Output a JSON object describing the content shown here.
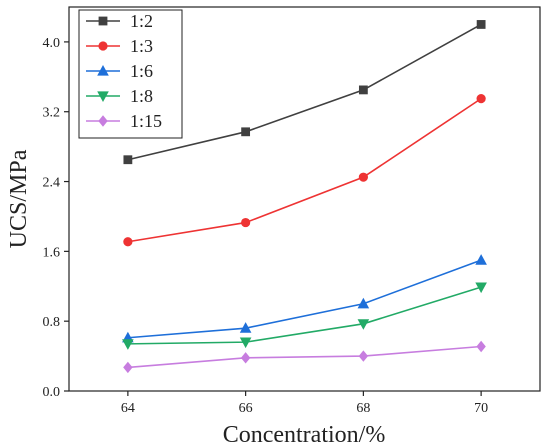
{
  "chart_data": {
    "type": "line",
    "xlabel": "Concentration/%",
    "ylabel": "UCS/MPa",
    "x": [
      64,
      66,
      68,
      70
    ],
    "xlim": [
      63,
      71
    ],
    "ylim": [
      0,
      4.4
    ],
    "xticks": [
      64,
      66,
      68,
      70
    ],
    "yticks": [
      0.0,
      0.8,
      1.6,
      2.4,
      3.2,
      4.0
    ],
    "xtick_labels": [
      "64",
      "66",
      "68",
      "70"
    ],
    "ytick_labels": [
      "0.0",
      "0.8",
      "1.6",
      "2.4",
      "3.2",
      "4.0"
    ],
    "grid": false,
    "legend_position": "top-left",
    "series": [
      {
        "name": "1:2",
        "values": [
          2.65,
          2.97,
          3.45,
          4.2
        ],
        "color": "#404040",
        "marker": "square"
      },
      {
        "name": "1:3",
        "values": [
          1.71,
          1.93,
          2.45,
          3.35
        ],
        "color": "#ee3333",
        "marker": "circle"
      },
      {
        "name": "1:6",
        "values": [
          0.61,
          0.72,
          1.0,
          1.5
        ],
        "color": "#1e6fd9",
        "marker": "triangle-up"
      },
      {
        "name": "1:8",
        "values": [
          0.54,
          0.56,
          0.77,
          1.19
        ],
        "color": "#22aa66",
        "marker": "triangle-down"
      },
      {
        "name": "1:15",
        "values": [
          0.27,
          0.38,
          0.4,
          0.51
        ],
        "color": "#c77ddf",
        "marker": "diamond"
      }
    ]
  }
}
